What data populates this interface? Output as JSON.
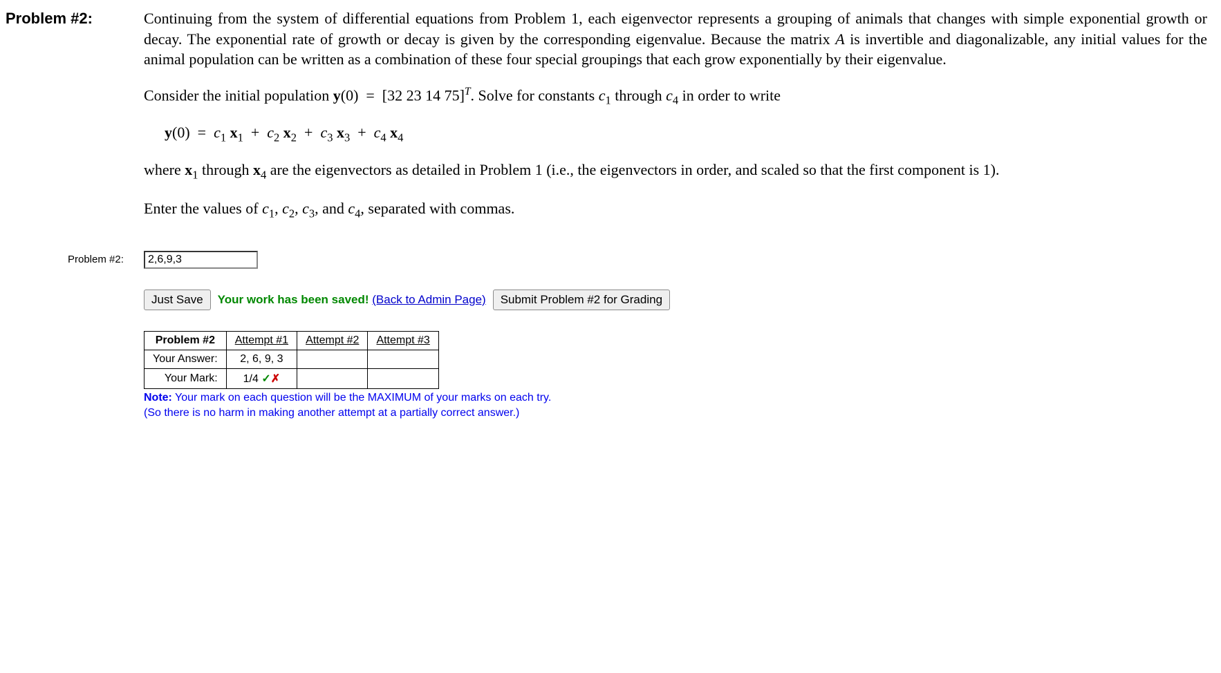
{
  "problem": {
    "label": "Problem #2:",
    "prose1_html": "Continuing from the system of differential equations from Problem 1, each eigenvector represents a grouping of animals that changes with simple exponential growth or decay. The exponential rate of growth or decay is given by the corresponding eigenvalue. Because the matrix <span class=\"ital\">A</span> is invertible and diagonalizable, any initial values for the animal population can be written as a combination of these four special groupings that each grow exponentially by their eigenvalue.",
    "prose2_html": "Consider the initial population <b>y</b>(0) &nbsp;=&nbsp; [32 23 14 75]<sup>T</sup>. Solve for constants <span class=\"ital\">c</span><span class=\"sub\">1</span> through <span class=\"ital\">c</span><span class=\"sub\">4</span> in order to write",
    "equation_html": "<span class=\"bold\">y</span>(0) &nbsp;=&nbsp; <span class=\"ital\">c</span><span class=\"sub\">1</span> <span class=\"bold\">x</span><span class=\"sub\">1</span> &nbsp;+&nbsp; <span class=\"ital\">c</span><span class=\"sub\">2</span> <span class=\"bold\">x</span><span class=\"sub\">2</span> &nbsp;+&nbsp; <span class=\"ital\">c</span><span class=\"sub\">3</span> <span class=\"bold\">x</span><span class=\"sub\">3</span> &nbsp;+&nbsp; <span class=\"ital\">c</span><span class=\"sub\">4</span> <span class=\"bold\">x</span><span class=\"sub\">4</span>",
    "prose3_html": "where <b>x</b><span class=\"sub\">1</span> through <b>x</b><span class=\"sub\">4</span> are the eigenvectors as detailed in Problem 1 (i.e., the eigenvectors in order, and scaled so that the first component is 1).",
    "prose4_html": "Enter the values of <span class=\"ital\">c</span><span class=\"sub\">1</span>, <span class=\"ital\">c</span><span class=\"sub\">2</span>, <span class=\"ital\">c</span><span class=\"sub\">3</span>, and <span class=\"ital\">c</span><span class=\"sub\">4</span>, separated with commas."
  },
  "input": {
    "label": "Problem #2:",
    "value": "2,6,9,3"
  },
  "actions": {
    "just_save": "Just Save",
    "saved_msg": "Your work has been saved!",
    "admin_link": "(Back to Admin Page)",
    "submit": "Submit Problem #2 for Grading"
  },
  "attempts": {
    "header_problem": "Problem #2",
    "columns": [
      "Attempt #1",
      "Attempt #2",
      "Attempt #3"
    ],
    "row_answer_label": "Your Answer:",
    "row_mark_label": "Your Mark:",
    "answers": [
      "2, 6, 9, 3",
      "",
      ""
    ],
    "marks_html": [
      "1/4 <span class=\"check\">✓</span><span class=\"cross\">✗</span>",
      "",
      ""
    ]
  },
  "note": {
    "label": "Note:",
    "line1": " Your mark on each question will be the MAXIMUM of your marks on each try.",
    "line2": "(So there is no harm in making another attempt at a partially correct answer.)"
  },
  "style": {
    "link_color": "#0000cc",
    "note_color": "#0000ee",
    "saved_color": "#008800",
    "check_color": "#008800",
    "cross_color": "#cc0000",
    "background": "#ffffff"
  }
}
